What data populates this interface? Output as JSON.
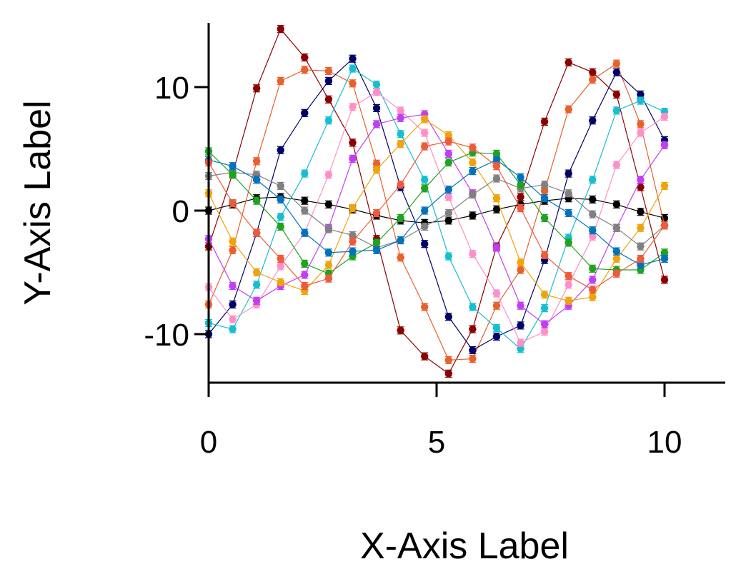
{
  "chart_data": {
    "type": "line",
    "xlabel": "X-Axis Label",
    "ylabel": "Y-Axis Label",
    "xlim": [
      0,
      11.3
    ],
    "ylim": [
      -14,
      15.5
    ],
    "x_ticks": [
      0,
      5,
      10
    ],
    "x_tick_labels": [
      "0",
      "5",
      "10"
    ],
    "y_ticks": [
      -10,
      0,
      10
    ],
    "y_tick_labels": [
      "-10",
      "0",
      "10"
    ],
    "grid": false,
    "error_bars": true,
    "x": [
      0,
      0.5263,
      1.0526,
      1.5789,
      2.1053,
      2.6316,
      3.1579,
      3.6842,
      4.2105,
      4.7368,
      5.2632,
      5.7895,
      6.3158,
      6.8421,
      7.3684,
      7.8947,
      8.4211,
      8.9474,
      9.4737,
      10.0
    ],
    "series": [
      {
        "color": "#000000",
        "values": [
          0.0,
          0.5,
          1.0,
          1.1,
          0.8,
          0.5,
          0.1,
          -0.4,
          -0.8,
          -1.0,
          -0.8,
          -0.4,
          0.1,
          0.5,
          0.8,
          1.0,
          0.9,
          0.5,
          -0.1,
          -0.6
        ]
      },
      {
        "color": "#8b0000",
        "values": [
          -2.9,
          3.0,
          9.9,
          14.7,
          12.4,
          9.0,
          5.5,
          -2.3,
          -9.7,
          -11.8,
          -13.2,
          -9.6,
          -2.9,
          1.1,
          7.2,
          12.0,
          11.2,
          9.4,
          1.9,
          -5.6
        ]
      },
      {
        "color": "#e8602c",
        "values": [
          -7.6,
          -3.2,
          4.0,
          10.5,
          11.4,
          11.3,
          10.3,
          3.8,
          -3.8,
          -7.8,
          -12.1,
          -12.0,
          -7.7,
          -4.8,
          1.6,
          8.2,
          10.6,
          11.9,
          7.0,
          -1.2
        ]
      },
      {
        "color": "#000066",
        "values": [
          -10.0,
          -7.6,
          -1.8,
          4.9,
          7.9,
          10.5,
          12.3,
          8.3,
          1.9,
          -2.7,
          -8.6,
          -11.3,
          -10.2,
          -9.3,
          -4.0,
          3.0,
          7.3,
          11.2,
          9.4,
          5.7
        ]
      },
      {
        "color": "#17becf",
        "values": [
          -9.1,
          -9.6,
          -6.0,
          -0.5,
          3.0,
          7.3,
          11.5,
          10.2,
          6.2,
          2.5,
          -3.7,
          -7.8,
          -9.5,
          -11.2,
          -7.9,
          -2.2,
          2.5,
          8.1,
          8.9,
          8.0
        ]
      },
      {
        "color": "#ff8fc8",
        "values": [
          -6.2,
          -8.8,
          -7.6,
          -4.5,
          -1.8,
          2.9,
          8.4,
          9.6,
          8.1,
          6.3,
          1.1,
          -3.5,
          -6.7,
          -10.7,
          -9.8,
          -6.0,
          -2.1,
          3.7,
          6.3,
          7.6
        ]
      },
      {
        "color": "#c23ef2",
        "values": [
          -2.3,
          -6.1,
          -7.3,
          -6.1,
          -5.2,
          -1.4,
          4.2,
          7.0,
          7.5,
          7.8,
          4.6,
          1.4,
          -3.0,
          -7.7,
          -9.2,
          -7.7,
          -5.6,
          -1.4,
          2.5,
          5.3
        ]
      },
      {
        "color": "#f0a30a",
        "values": [
          1.4,
          -2.5,
          -5.0,
          -5.8,
          -6.5,
          -4.4,
          0.2,
          3.3,
          5.4,
          7.4,
          6.1,
          3.9,
          1.0,
          -4.2,
          -6.8,
          -7.3,
          -7.0,
          -3.9,
          -1.4,
          2.0
        ]
      },
      {
        "color": "#808080",
        "values": [
          2.8,
          3.1,
          2.9,
          2.0,
          0.0,
          -1.5,
          -2.0,
          -3.0,
          -2.4,
          -1.3,
          -0.2,
          1.3,
          2.6,
          1.8,
          2.1,
          1.4,
          -0.3,
          -1.4,
          -2.9,
          -1.2
        ]
      },
      {
        "color": "#1fa31f",
        "values": [
          4.8,
          2.9,
          0.8,
          -1.3,
          -4.3,
          -5.1,
          -3.7,
          -2.6,
          -0.6,
          1.8,
          3.9,
          4.7,
          4.6,
          2.1,
          -0.6,
          -2.6,
          -4.7,
          -4.8,
          -4.8,
          -3.4
        ]
      },
      {
        "color": "#0072bd",
        "values": [
          4.1,
          3.6,
          2.5,
          0.9,
          -1.8,
          -3.4,
          -3.3,
          -3.2,
          -2.4,
          0.0,
          1.7,
          3.2,
          4.1,
          2.7,
          1.0,
          -0.2,
          -1.6,
          -3.3,
          -4.4,
          -3.9
        ]
      },
      {
        "color": "#ee5a3a",
        "values": [
          3.9,
          0.6,
          -1.8,
          -3.9,
          -6.1,
          -5.5,
          -2.5,
          -0.2,
          2.1,
          5.2,
          5.6,
          5.1,
          3.6,
          0.2,
          -3.6,
          -5.3,
          -6.4,
          -5.1,
          -3.9,
          -1.2
        ]
      }
    ]
  }
}
